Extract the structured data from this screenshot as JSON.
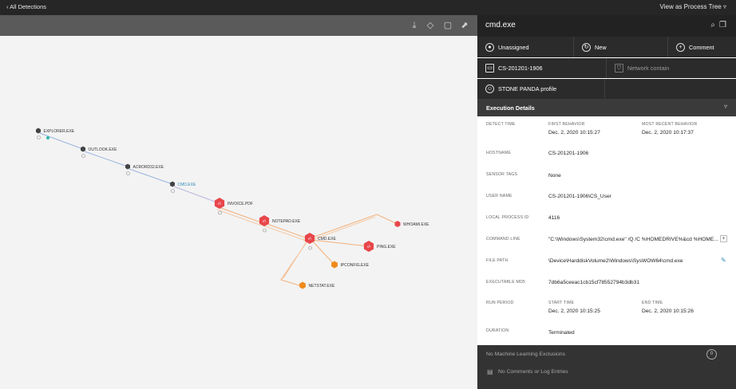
{
  "topbar": {
    "back_label": "All Detections",
    "view_label": "View as Process Tree"
  },
  "toolbar": {
    "icons": [
      "download-icon",
      "layers-icon",
      "expand-icon",
      "external-link-icon"
    ]
  },
  "tree": {
    "nodes": [
      {
        "label": "EXPLORER.EXE",
        "kind": "process"
      },
      {
        "label": "OUTLOOK.EXE",
        "kind": "process"
      },
      {
        "label": "ACRORD32.EXE",
        "kind": "process"
      },
      {
        "label": "CMD.EXE",
        "kind": "process-selected"
      },
      {
        "label": "INVOICE.PDF",
        "kind": "detection"
      },
      {
        "label": "NOTEPAD.EXE",
        "kind": "detection"
      },
      {
        "label": "CMD.EXE",
        "kind": "detection"
      },
      {
        "label": "WHOAMI.EXE",
        "kind": "detection"
      },
      {
        "label": "PING.EXE",
        "kind": "detection"
      },
      {
        "label": "IPCONFIG.EXE",
        "kind": "warning"
      },
      {
        "label": "NETSTAT.EXE",
        "kind": "warning"
      }
    ],
    "colors": {
      "detection": "#e8464a",
      "warning": "#f08a1e",
      "process": "#444444",
      "selected": "#2d8bb8"
    }
  },
  "panel": {
    "title": "cmd.exe",
    "assign_label": "Unassigned",
    "status_label": "New",
    "comment_label": "Comment",
    "host_label": "CS-201201-1906",
    "network_label": "Network contain",
    "actor_label": "STONE PANDA profile",
    "section_title": "Execution Details",
    "details": {
      "detect_time_label": "DETECT TIME",
      "first_behavior_label": "FIRST BEHAVIOR",
      "first_behavior": "Dec. 2, 2020 10:15:27",
      "recent_behavior_label": "MOST RECENT BEHAVIOR",
      "recent_behavior": "Dec. 2, 2020 10:17:37",
      "hostname_label": "HOSTNAME",
      "hostname": "CS-201201-1906",
      "sensor_tags_label": "SENSOR TAGS",
      "sensor_tags": "None",
      "user_name_label": "USER NAME",
      "user_name": "CS-201201-1906\\CS_User",
      "pid_label": "LOCAL PROCESS ID",
      "pid": "4116",
      "cmdline_label": "COMMAND LINE",
      "cmdline": "\"C:\\Windows\\System32\\cmd.exe\" /Q /C %HOMEDRIVE%&cd %HOME...",
      "filepath_label": "FILE PATH",
      "filepath": "\\Device\\HarddiskVolume2\\Windows\\SysWOW64\\cmd.exe",
      "md5_label": "EXECUTABLE MD5",
      "md5": "7db6a5ceeac1cb15cf78552794b3db31",
      "run_period_label": "RUN PERIOD",
      "start_time_label": "START TIME",
      "start_time": "Dec. 2, 2020 10:15:25",
      "end_time_label": "END TIME",
      "end_time": "Dec. 2, 2020 10:15:26",
      "duration_label": "DURATION",
      "duration": "Terminated"
    },
    "ml_exclusions_label": "No Machine Learning Exclusions",
    "ml_exclusions_count": "0",
    "comments_label": "No Comments or Log Entries"
  }
}
